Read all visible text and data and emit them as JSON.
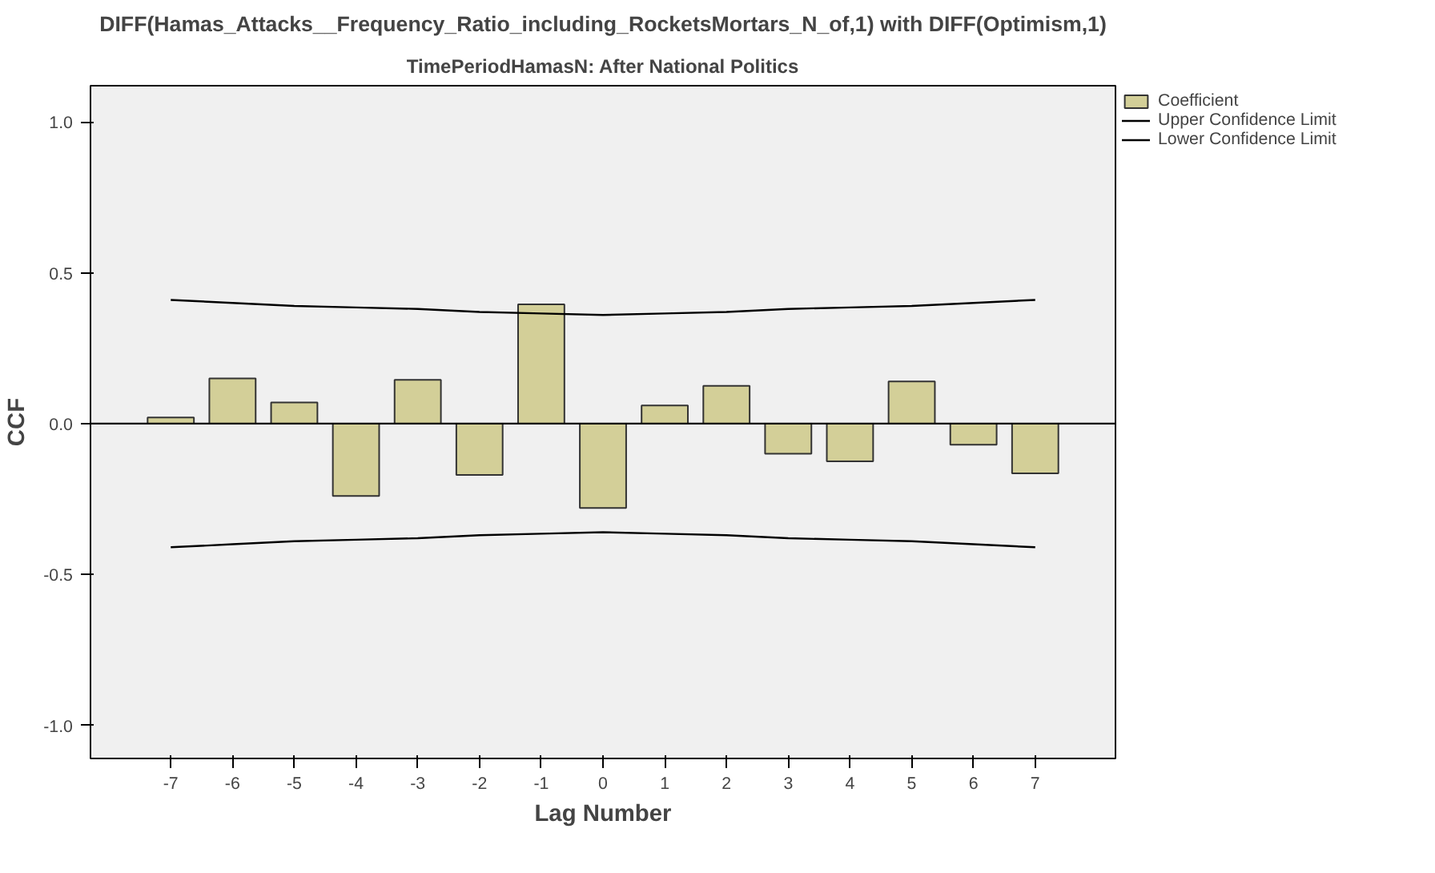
{
  "chart_data": {
    "type": "bar",
    "title": "DIFF(Hamas_Attacks__Frequency_Ratio_including_RocketsMortars_N_of,1) with DIFF(Optimism,1)",
    "subtitle": "TimePeriodHamasN: After National Politics",
    "xlabel": "Lag Number",
    "ylabel": "CCF",
    "x": [
      -7,
      -6,
      -5,
      -4,
      -3,
      -2,
      -1,
      0,
      1,
      2,
      3,
      4,
      5,
      6,
      7
    ],
    "series": [
      {
        "name": "Coefficient",
        "color": "#d3cf98",
        "values": [
          0.02,
          0.15,
          0.07,
          -0.24,
          0.145,
          -0.17,
          0.395,
          -0.28,
          0.06,
          0.125,
          -0.1,
          -0.125,
          0.14,
          -0.07,
          -0.165
        ]
      },
      {
        "name": "Upper Confidence Limit",
        "type": "line",
        "color": "#000000",
        "values": [
          0.41,
          0.4,
          0.39,
          0.385,
          0.38,
          0.37,
          0.365,
          0.36,
          0.365,
          0.37,
          0.38,
          0.385,
          0.39,
          0.4,
          0.41
        ]
      },
      {
        "name": "Lower Confidence Limit",
        "type": "line",
        "color": "#000000",
        "values": [
          -0.41,
          -0.4,
          -0.39,
          -0.385,
          -0.38,
          -0.37,
          -0.365,
          -0.36,
          -0.365,
          -0.37,
          -0.38,
          -0.385,
          -0.39,
          -0.4,
          -0.41
        ]
      }
    ],
    "xlim": [
      -8.3,
      8.3
    ],
    "xticks": [
      -7,
      -6,
      -5,
      -4,
      -3,
      -2,
      -1,
      0,
      1,
      2,
      3,
      4,
      5,
      6,
      7
    ],
    "ylim": [
      -1.11,
      1.12
    ],
    "yticks": [
      {
        "value": -1,
        "label": "-1.0"
      },
      {
        "value": -0.5,
        "label": "-0.5"
      },
      {
        "value": 0,
        "label": "0.0"
      },
      {
        "value": 0.5,
        "label": "0.5"
      },
      {
        "value": 1,
        "label": "1.0"
      }
    ],
    "ref_lines": [
      {
        "axis": "y",
        "value": 0,
        "color": "#000000"
      }
    ],
    "legend": "right",
    "grid": false
  }
}
